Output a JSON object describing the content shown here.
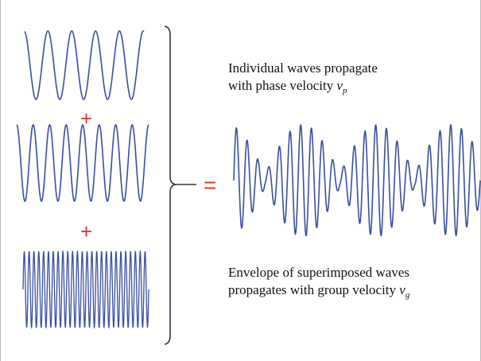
{
  "figure": {
    "colors": {
      "wave": "#3a4fa0",
      "operator": "#e03a2a",
      "text": "#111111",
      "bracket": "#333333"
    },
    "waves": [
      {
        "name": "wave-1",
        "cycles": 5
      },
      {
        "name": "wave-2",
        "cycles": 8
      },
      {
        "name": "wave-3",
        "cycles": 26
      }
    ],
    "result": {
      "name": "superposition",
      "carrier_cycles": 23,
      "envelope_cycles": 3.3
    },
    "operators": {
      "plus": "+",
      "equals": "="
    },
    "phase_caption": {
      "line1": "Individual waves propagate",
      "line2_prefix": "with phase velocity ",
      "var": "v",
      "sub": "p"
    },
    "group_caption": {
      "line1": "Envelope of superimposed waves",
      "line2_prefix": "propagates with group velocity ",
      "var": "v",
      "sub": "g"
    }
  }
}
